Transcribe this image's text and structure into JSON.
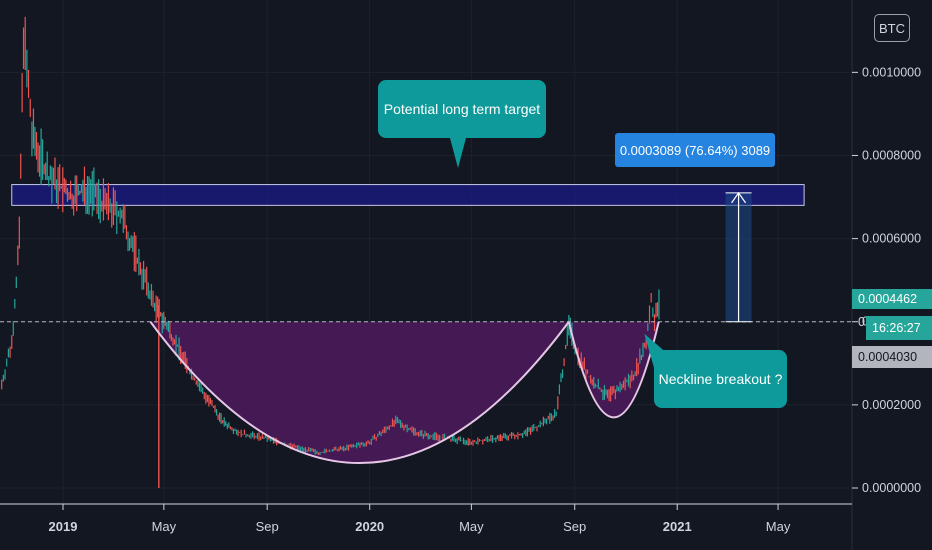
{
  "header": {
    "symbol_badge": "BTC"
  },
  "annotations": {
    "target_callout": "Potential long term target",
    "neckline_callout": "Neckline breakout ?",
    "measure_label": "0.0003089 (76.64%) 3089"
  },
  "price_scale": {
    "current_price": "0.0004462",
    "countdown": "16:26:27",
    "marker_price": "0.0004030",
    "hidden_price_fragment": "0"
  },
  "colors": {
    "background": "#131722",
    "up_candle": "#26a69a",
    "down_candle": "#ef5350",
    "target_zone": "#1a1a7a",
    "cup_fill": "#4a1a5a",
    "callout": "#0e9a9a",
    "measure": "#2584e0"
  },
  "chart_data": {
    "type": "line",
    "title": "",
    "xlabel": "",
    "ylabel": "",
    "x_ticks": [
      "2019",
      "May",
      "Sep",
      "2020",
      "May",
      "Sep",
      "2021",
      "May"
    ],
    "y_ticks": [
      "0.0000000",
      "0.0002000",
      "0.0004000",
      "0.0006000",
      "0.0008000",
      "0.0010000"
    ],
    "ylim": [
      0.0,
      0.00115
    ],
    "xlim": [
      "2018-10-18",
      "2021-07-28"
    ],
    "series": [
      {
        "values": [
          [
            "2018-10-20",
            0.00025
          ],
          [
            "2018-11-01",
            0.00035
          ],
          [
            "2018-11-10",
            0.0006
          ],
          [
            "2018-11-15",
            0.0011
          ],
          [
            "2018-11-25",
            0.00085
          ],
          [
            "2018-12-15",
            0.00075
          ],
          [
            "2019-01-10",
            0.0007
          ],
          [
            "2019-02-01",
            0.00072
          ],
          [
            "2019-02-20",
            0.00068
          ],
          [
            "2019-03-10",
            0.00066
          ],
          [
            "2019-03-25",
            0.00058
          ],
          [
            "2019-04-05",
            0.00052
          ],
          [
            "2019-04-20",
            0.00044
          ],
          [
            "2019-05-10",
            0.00037
          ],
          [
            "2019-06-01",
            0.00028
          ],
          [
            "2019-06-20",
            0.00022
          ],
          [
            "2019-07-10",
            0.00016
          ],
          [
            "2019-08-01",
            0.00013
          ],
          [
            "2019-09-01",
            0.00012
          ],
          [
            "2019-10-01",
            0.0001
          ],
          [
            "2019-11-01",
            8.5e-05
          ],
          [
            "2019-12-01",
            9.5e-05
          ],
          [
            "2020-01-01",
            0.00011
          ],
          [
            "2020-02-01",
            0.00016
          ],
          [
            "2020-03-01",
            0.00013
          ],
          [
            "2020-04-01",
            0.00012
          ],
          [
            "2020-05-01",
            0.00011
          ],
          [
            "2020-06-01",
            0.00012
          ],
          [
            "2020-07-01",
            0.00013
          ],
          [
            "2020-07-20",
            0.00015
          ],
          [
            "2020-08-10",
            0.00018
          ],
          [
            "2020-08-25",
            0.00039
          ],
          [
            "2020-09-05",
            0.00032
          ],
          [
            "2020-09-20",
            0.00026
          ],
          [
            "2020-10-10",
            0.00022
          ],
          [
            "2020-10-25",
            0.00024
          ],
          [
            "2020-11-10",
            0.00027
          ],
          [
            "2020-11-25",
            0.00035
          ],
          [
            "2020-12-01",
            0.00046
          ],
          [
            "2020-12-05",
            0.0004
          ],
          [
            "2020-12-12",
            0.00046
          ]
        ]
      }
    ],
    "wick_spike": {
      "date": "2019-04-25",
      "low": 0.0
    },
    "target_zone": {
      "from": 0.00068,
      "to": 0.00073,
      "start": "2018-11-01",
      "end": "2021-06-01"
    },
    "neckline": 0.0004,
    "cup": {
      "start": "2019-04-15",
      "end": "2020-08-25",
      "bottom": 6e-05
    },
    "handle": {
      "start": "2020-08-25",
      "end": "2020-12-10",
      "bottom": 0.00017
    },
    "measure": {
      "date": "2021-03-15",
      "from": 0.0004,
      "to": 0.00071
    },
    "price_marker": 0.000403,
    "last_price": 0.0004462
  }
}
